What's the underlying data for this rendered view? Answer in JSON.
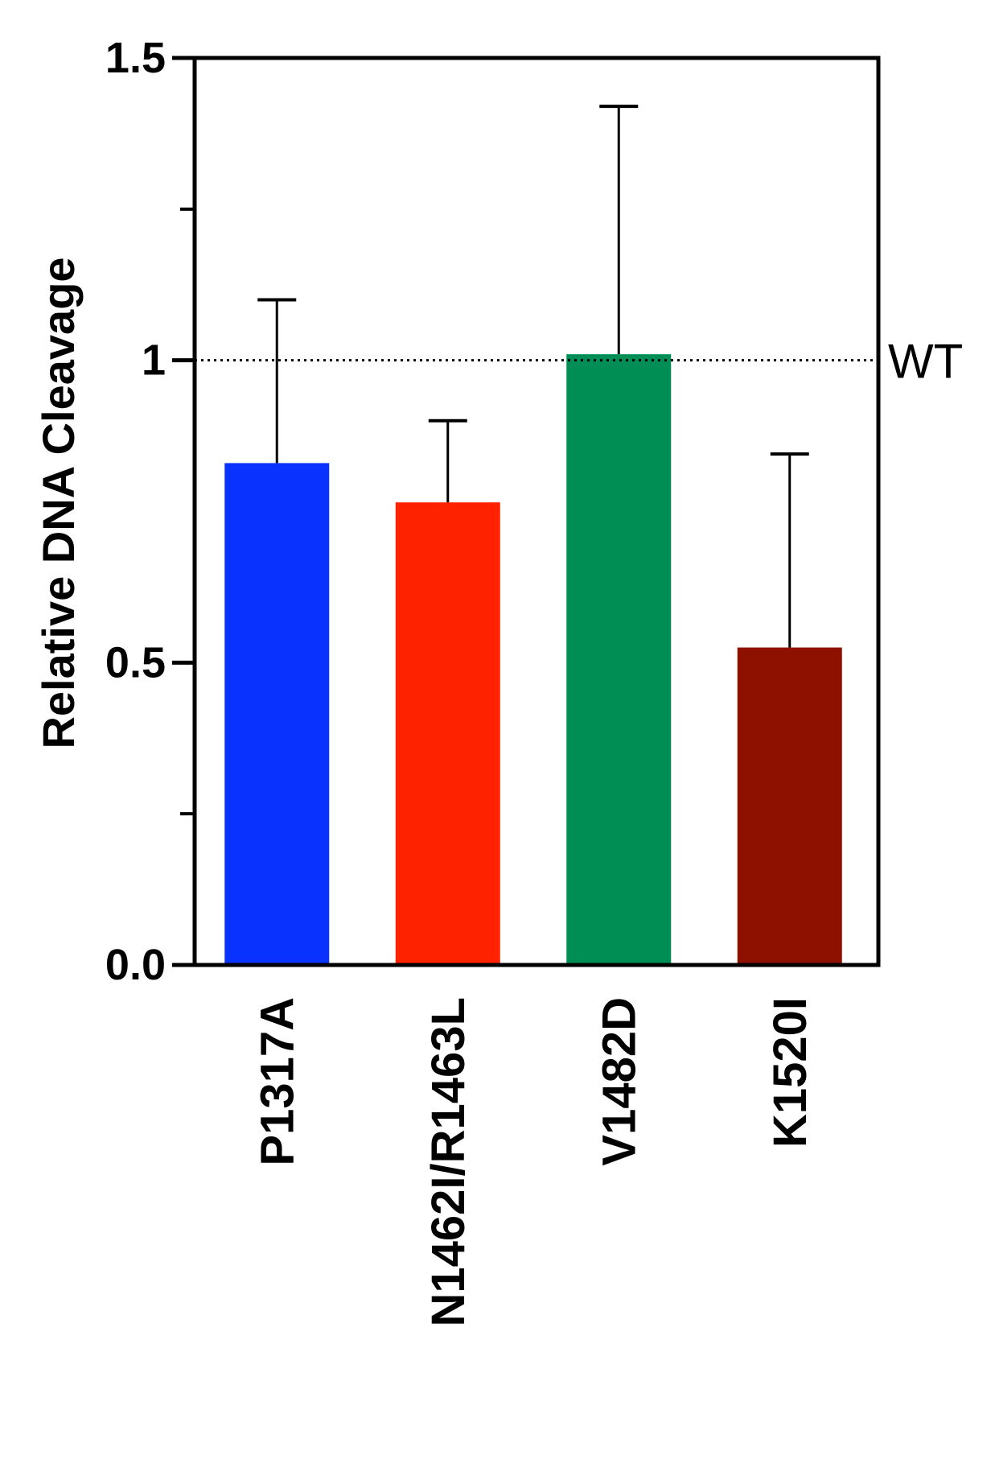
{
  "chart_data": {
    "type": "bar",
    "ylabel": "Relative DNA Cleavage",
    "xlabel": "",
    "ylim": [
      0,
      1.5
    ],
    "yticks": [
      {
        "value": 0.0,
        "label": "0.0"
      },
      {
        "value": 0.5,
        "label": "0.5"
      },
      {
        "value": 1.0,
        "label": "1"
      },
      {
        "value": 1.5,
        "label": "1.5"
      }
    ],
    "minor_yticks": [
      0.25,
      1.25
    ],
    "categories": [
      "P1317A",
      "N1462I/R1463L",
      "V1482D",
      "K1520I"
    ],
    "values": [
      0.83,
      0.765,
      1.01,
      0.525
    ],
    "error_upper": [
      1.1,
      0.9,
      1.42,
      0.845
    ],
    "colors": [
      "#0a32ff",
      "#ff2200",
      "#008e55",
      "#8e1100"
    ],
    "reference_line": {
      "value": 1.0,
      "label": "WT",
      "style": "dotted"
    },
    "grid": false,
    "legend": "none"
  }
}
